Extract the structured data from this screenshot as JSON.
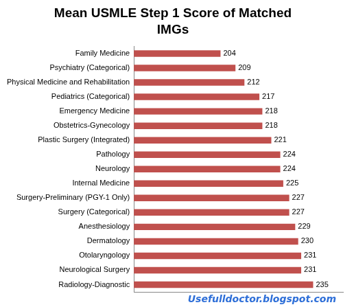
{
  "chart_data": {
    "type": "bar",
    "orientation": "horizontal",
    "title": [
      "Mean USMLE Step 1 Score of Matched",
      "IMGs"
    ],
    "categories": [
      "Family Medicine",
      "Psychiatry (Categorical)",
      "Physical Medicine and Rehabilitation",
      "Pediatrics (Categorical)",
      "Emergency Medicine",
      "Obstetrics-Gynecology",
      "Plastic Surgery (Integrated)",
      "Pathology",
      "Neurology",
      "Internal Medicine",
      "Surgery-Preliminary (PGY-1 Only)",
      "Surgery (Categorical)",
      "Anesthesiology",
      "Dermatology",
      "Otolaryngology",
      "Neurological Surgery",
      "Radiology-Diagnostic"
    ],
    "values": [
      204,
      209,
      212,
      217,
      218,
      218,
      221,
      224,
      224,
      225,
      227,
      227,
      229,
      230,
      231,
      231,
      235
    ],
    "color": "#c0504d",
    "xlim": [
      175,
      245
    ],
    "grid": false,
    "data_labels": true,
    "tick_labels": "y",
    "annotations": [
      {
        "text": "Usefulldoctor.blogspot.com"
      }
    ]
  }
}
